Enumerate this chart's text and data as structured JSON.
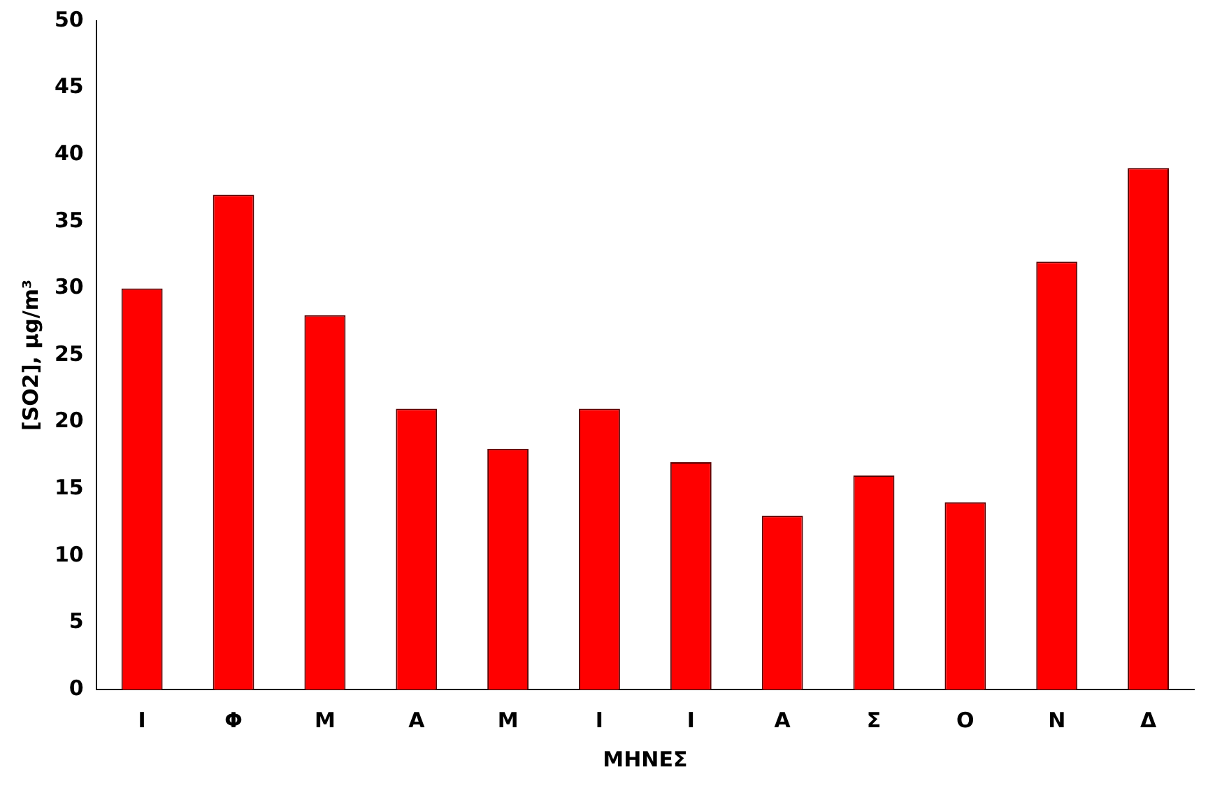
{
  "chart_data": {
    "type": "bar",
    "categories": [
      "Ι",
      "Φ",
      "Μ",
      "Α",
      "Μ",
      "Ι",
      "Ι",
      "Α",
      "Σ",
      "Ο",
      "Ν",
      "Δ"
    ],
    "values": [
      30,
      37,
      28,
      21,
      18,
      21,
      17,
      13,
      16,
      14,
      32,
      39
    ],
    "color": "#ff0000",
    "xlabel": "ΜΗΝΕΣ",
    "ylabel": "[SO2], μg/m³",
    "ylim": [
      0,
      50
    ],
    "yticks": [
      0,
      5,
      10,
      15,
      20,
      25,
      30,
      35,
      40,
      45,
      50
    ],
    "grid": false,
    "legend": false
  }
}
